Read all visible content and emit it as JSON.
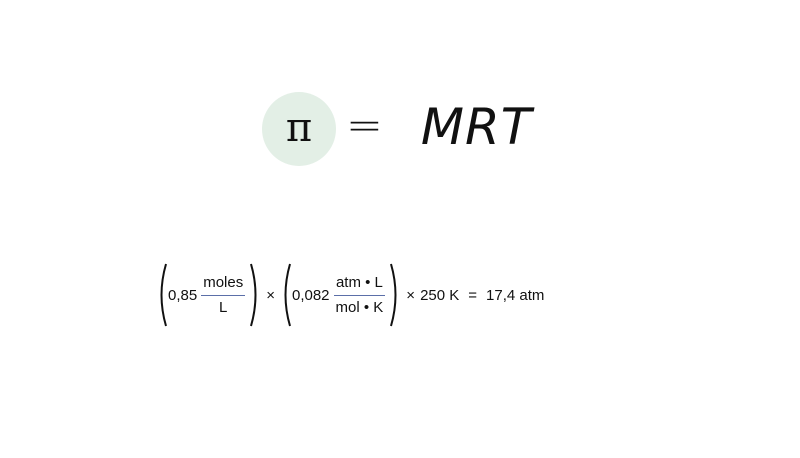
{
  "formula": {
    "lhs_symbol": "π",
    "equals": "=",
    "rhs": "MRT"
  },
  "calculation": {
    "molarity_value": "0,85",
    "molarity_unit_numerator": "moles",
    "molarity_unit_denominator": "L",
    "times_1": "×",
    "gas_constant_value": "0,082",
    "gas_constant_unit_numerator": "atm • L",
    "gas_constant_unit_denominator": "mol • K",
    "times_2": "×",
    "temperature": "250 K",
    "equals": "=",
    "result": "17,4 atm"
  },
  "colors": {
    "pi_circle_background": "#e3efe6",
    "fraction_bar": "#5b6fa8",
    "text": "#111111"
  }
}
